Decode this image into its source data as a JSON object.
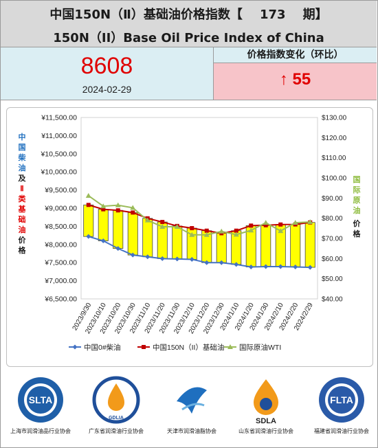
{
  "header": {
    "title_cn": "中国150N（Ⅱ）基础油价格指数【    173    期】",
    "title_en": "150N（II）Base Oil Price Index of China"
  },
  "index": {
    "value": "8608",
    "date": "2024-02-29"
  },
  "change": {
    "label": "价格指数变化（环比）",
    "arrow": "↑",
    "value": "55"
  },
  "chart_data": {
    "type": "line",
    "x": [
      "2023/9/30",
      "2023/10/10",
      "2023/10/20",
      "2023/10/30",
      "2023/11/10",
      "2023/11/20",
      "2023/11/30",
      "2023/12/10",
      "2023/12/20",
      "2023/12/30",
      "2024/1/10",
      "2024/1/20",
      "2024/1/30",
      "2024/2/10",
      "2024/2/20",
      "2024/2/29"
    ],
    "x_tick_labels": [
      "2023/9/30",
      "2023/10/10",
      "2023/10/20",
      "2023/10/30",
      "2023/11/10",
      "2023/11/20",
      "2023/11/30",
      "2023/12/10",
      "2023/12/20",
      "2023/12/30",
      "2024/1/10",
      "2024/1/20",
      "2024/1/30",
      "2024/2/10",
      "2024/2/20",
      "2024/2/29"
    ],
    "y_left_ticks": [
      "¥11,500.00",
      "¥11,000.00",
      "¥10,500.00",
      "¥10,000.00",
      "¥9,500.00",
      "¥9,000.00",
      "¥8,500.00",
      "¥8,000.00",
      "¥7,500.00",
      "¥7,000.00",
      "¥6,500.00"
    ],
    "y_right_ticks": [
      "$130.00",
      "$120.00",
      "$110.00",
      "$100.00",
      "$90.00",
      "$80.00",
      "$70.00",
      "$60.00",
      "$50.00",
      "$40.00"
    ],
    "ylim_left": [
      6500,
      11500
    ],
    "ylim_right": [
      40,
      130
    ],
    "ylabel_left_parts": [
      {
        "text": "中国柴油",
        "color": "#1f6fbf"
      },
      {
        "text": "及",
        "color": "#1a1a1a"
      },
      {
        "text": "Ⅱ类基础油",
        "color": "#e00000"
      },
      {
        "text": "价格",
        "color": "#1a1a1a"
      }
    ],
    "ylabel_right_parts": [
      {
        "text": "国际原油",
        "color": "#8dbb3c"
      },
      {
        "text": "价格",
        "color": "#1a1a1a"
      }
    ],
    "series": [
      {
        "name": "中国0#柴油",
        "axis": "left",
        "color": "#4472c4",
        "marker": "diamond",
        "values": [
          8220,
          8100,
          7890,
          7710,
          7660,
          7610,
          7600,
          7590,
          7500,
          7500,
          7450,
          7380,
          7390,
          7390,
          7380,
          7370
        ]
      },
      {
        "name": "中国150N（II）基础油",
        "axis": "left",
        "color": "#c00000",
        "marker": "square",
        "values": [
          9090,
          8970,
          8940,
          8880,
          8720,
          8620,
          8510,
          8450,
          8380,
          8310,
          8380,
          8520,
          8530,
          8550,
          8553,
          8608
        ]
      },
      {
        "name": "国际原油WTI",
        "axis": "right",
        "color": "#9bbb59",
        "marker": "triangle",
        "values": [
          91.2,
          86.0,
          86.5,
          85.2,
          79.0,
          75.8,
          75.8,
          71.8,
          71.8,
          73.5,
          71.9,
          74.0,
          77.8,
          73.7,
          77.8,
          78.2
        ]
      }
    ],
    "band": {
      "between": [
        "中国150N（II）基础油",
        "中国0#柴油"
      ],
      "fill": "#ffff00"
    },
    "legend": "bottom",
    "grid": false
  },
  "logos": [
    {
      "abbr": "SLTA",
      "caption": "上海市润滑油品行业协会",
      "color": "#1f5fa8",
      "icon": "slta-logo-icon"
    },
    {
      "abbr": "GDLIA",
      "caption": "广东省润滑油行业协会",
      "color": "#1f4f9a",
      "icon": "gdlia-logo-icon"
    },
    {
      "abbr": "",
      "caption": "天津市润滑油脂协会",
      "color": "#1f6fbf",
      "icon": "tianjin-logo-icon"
    },
    {
      "abbr": "SDLA",
      "caption": "山东省润滑油行业协会",
      "color": "#222222",
      "icon": "sdla-logo-icon"
    },
    {
      "abbr": "FLTA",
      "caption": "福建省润滑油行业协会",
      "color": "#2a5aa8",
      "icon": "flta-logo-icon"
    }
  ]
}
